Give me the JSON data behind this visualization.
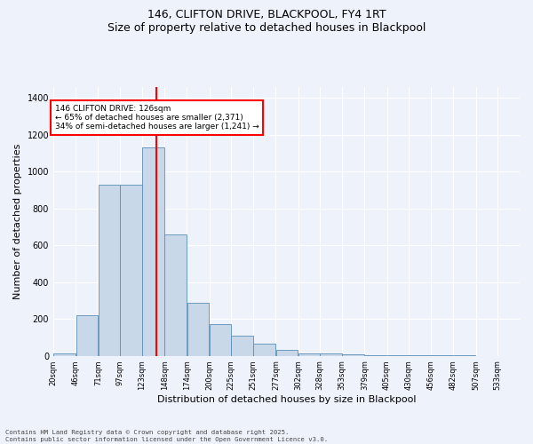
{
  "title_line1": "146, CLIFTON DRIVE, BLACKPOOL, FY4 1RT",
  "title_line2": "Size of property relative to detached houses in Blackpool",
  "xlabel": "Distribution of detached houses by size in Blackpool",
  "ylabel": "Number of detached properties",
  "annotation_title": "146 CLIFTON DRIVE: 126sqm",
  "annotation_line2": "← 65% of detached houses are smaller (2,371)",
  "annotation_line3": "34% of semi-detached houses are larger (1,241) →",
  "property_size_sqm": 126,
  "bin_edges_sqm": [
    7,
    33,
    59,
    84,
    110,
    136,
    162,
    188,
    213,
    239,
    265,
    291,
    316,
    342,
    368,
    394,
    419,
    445,
    471,
    497,
    522,
    548
  ],
  "bin_labels": [
    "20sqm",
    "46sqm",
    "71sqm",
    "97sqm",
    "123sqm",
    "148sqm",
    "174sqm",
    "200sqm",
    "225sqm",
    "251sqm",
    "277sqm",
    "302sqm",
    "328sqm",
    "353sqm",
    "379sqm",
    "405sqm",
    "430sqm",
    "456sqm",
    "482sqm",
    "507sqm",
    "533sqm"
  ],
  "bar_heights": [
    15,
    220,
    930,
    930,
    1130,
    660,
    290,
    170,
    110,
    65,
    30,
    15,
    15,
    10,
    5,
    5,
    5,
    3,
    3,
    0,
    0
  ],
  "bar_color": "#c8d8e8",
  "bar_edge_color": "#5b8db8",
  "vline_x": 126,
  "vline_color": "red",
  "ylim": [
    0,
    1460
  ],
  "yticks": [
    0,
    200,
    400,
    600,
    800,
    1000,
    1200,
    1400
  ],
  "background_color": "#eef2fb",
  "grid_color": "#ffffff",
  "footnote": "Contains HM Land Registry data © Crown copyright and database right 2025.\nContains public sector information licensed under the Open Government Licence v3.0."
}
